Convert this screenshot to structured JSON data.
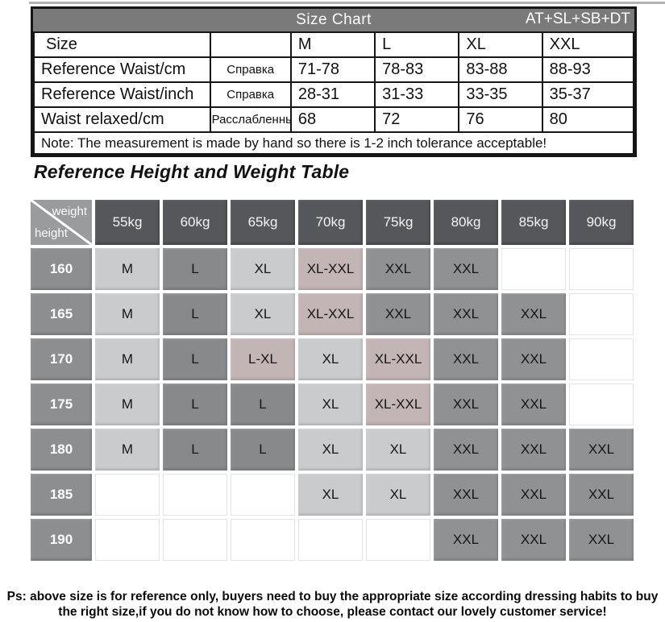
{
  "size_chart": {
    "bar": {
      "title": "Size Chart",
      "tag": "AT+SL+SB+DT"
    },
    "header": {
      "label": "Size",
      "sub": "",
      "cols": [
        "M",
        "L",
        "XL",
        "XXL"
      ]
    },
    "rows": [
      {
        "label": "Reference Waist/cm",
        "sub": "Справка",
        "values": [
          "71-78",
          "78-83",
          "83-88",
          "88-93"
        ]
      },
      {
        "label": "Reference Waist/inch",
        "sub": "Справка",
        "values": [
          "28-31",
          "31-33",
          "33-35",
          "35-37"
        ]
      },
      {
        "label": "Waist relaxed/cm",
        "sub": "Расслабленный",
        "values": [
          "68",
          "72",
          "76",
          "80"
        ]
      }
    ],
    "note": "Note: The measurement is made by hand so there is 1-2 inch tolerance acceptable!"
  },
  "hw_table": {
    "title": "Reference Height and Weight Table",
    "corner": {
      "top_label": "weight",
      "bottom_label": "height"
    },
    "weights": [
      "55kg",
      "60kg",
      "65kg",
      "70kg",
      "75kg",
      "80kg",
      "85kg",
      "90kg"
    ],
    "heights": [
      "160",
      "165",
      "170",
      "175",
      "180",
      "185",
      "190"
    ],
    "cells": [
      [
        "M",
        "L",
        "XL",
        "XL-XXL",
        "XXL",
        "XXL",
        "",
        ""
      ],
      [
        "M",
        "L",
        "XL",
        "XL-XXL",
        "XXL",
        "XXL",
        "XXL",
        ""
      ],
      [
        "M",
        "L",
        "L-XL",
        "XL",
        "XL-XXL",
        "XXL",
        "XXL",
        ""
      ],
      [
        "M",
        "L",
        "L",
        "XL",
        "XL-XXL",
        "XXL",
        "XXL",
        ""
      ],
      [
        "M",
        "L",
        "L",
        "XL",
        "XL",
        "XXL",
        "XXL",
        "XXL"
      ],
      [
        "",
        "",
        "",
        "XL",
        "XL",
        "XXL",
        "XXL",
        "XXL"
      ],
      [
        "",
        "",
        "",
        "",
        "",
        "XXL",
        "XXL",
        "XXL"
      ]
    ],
    "value_styles": {
      "M": "light",
      "L": "dark",
      "XL": "light",
      "L-XL": "pink",
      "XL-XXL": "pink",
      "XXL": "mid"
    }
  },
  "footer": {
    "line1": "Ps: above size is for reference only, buyers need to buy the appropriate size according dressing habits to buy",
    "line2": "the right size,if you do not know how to choose, please contact our lovely customer service!"
  },
  "colors": {
    "header_bar": "#7a7a7a",
    "weight_header": "#56575a",
    "height_header": "#8d8e90",
    "cell_light": "#cacbcd",
    "cell_dark": "#87898b",
    "cell_mid": "#8f9193",
    "cell_pink": "#c3b5b5",
    "border": "#161616"
  }
}
